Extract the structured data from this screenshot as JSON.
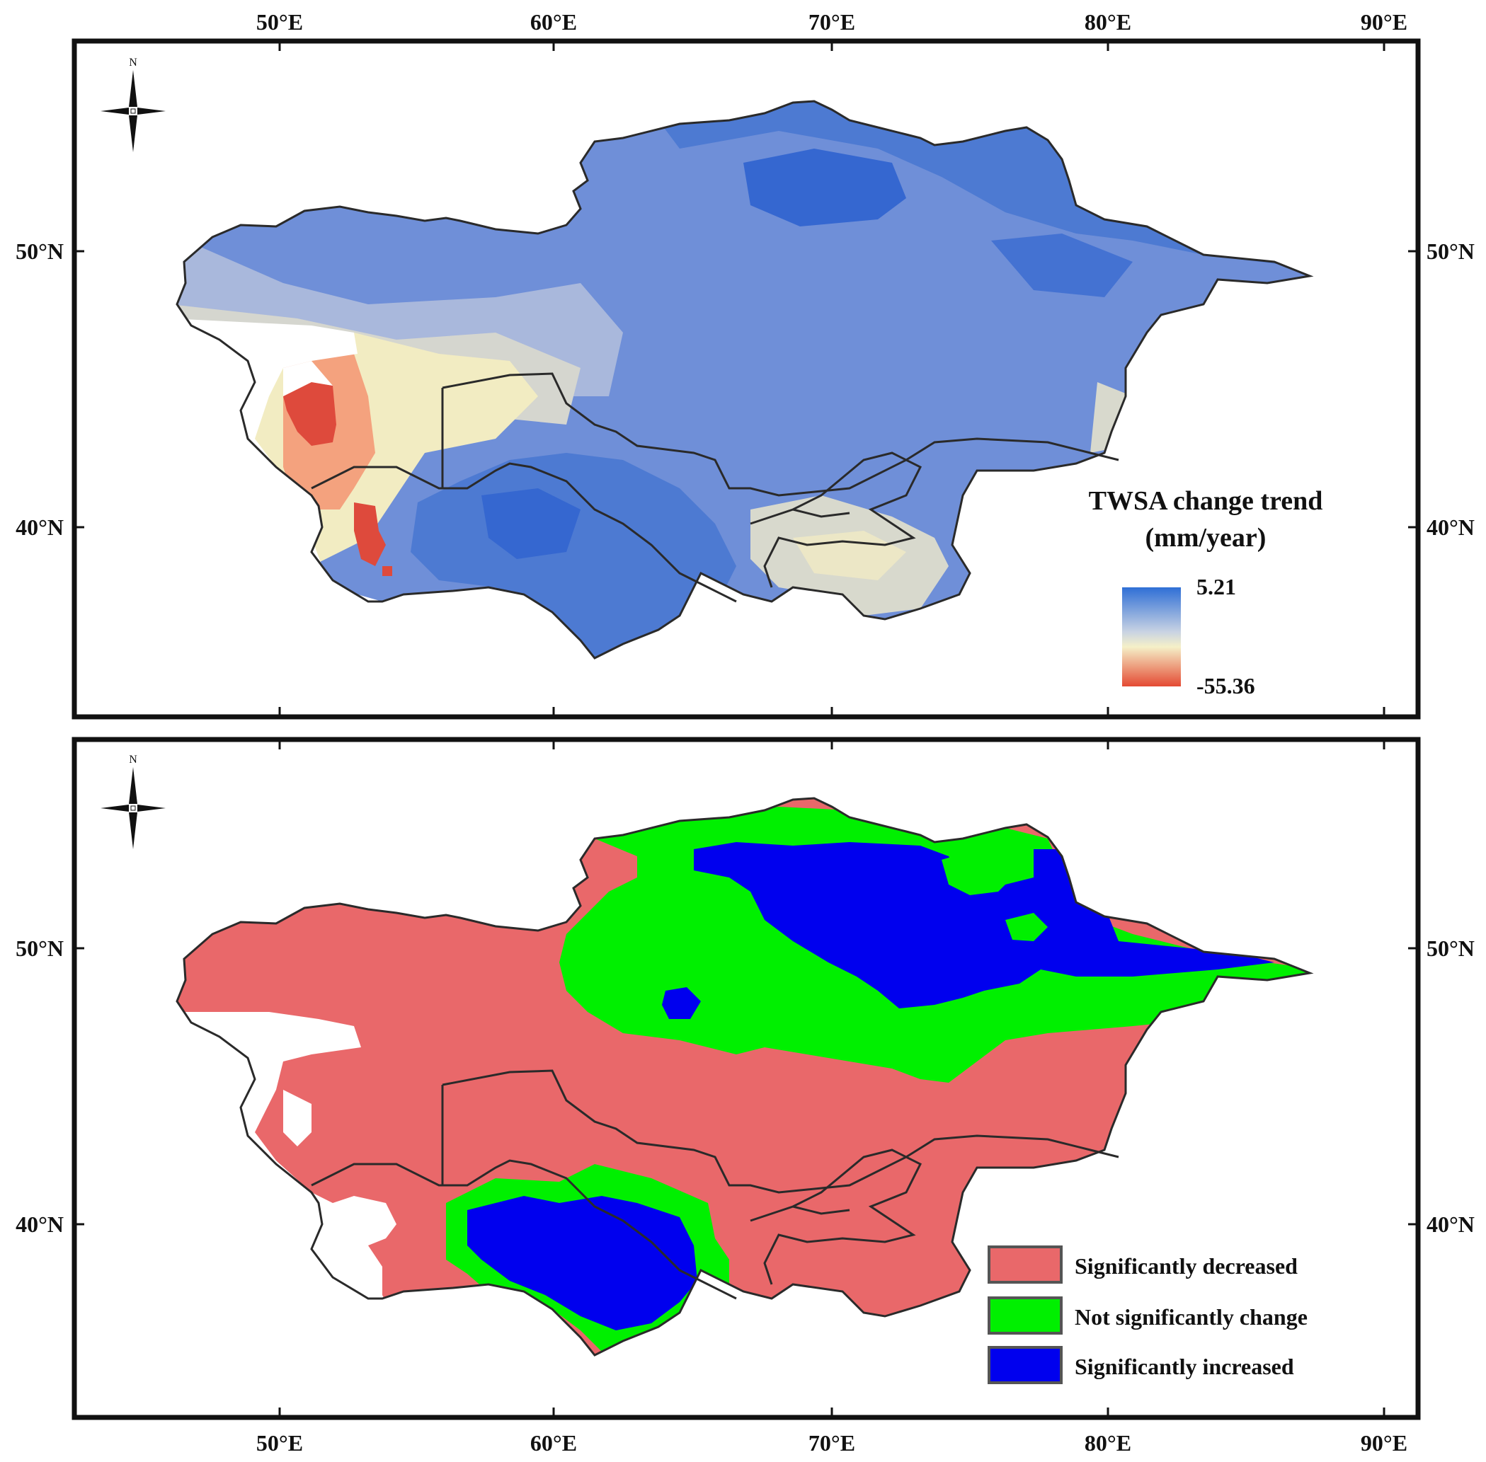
{
  "axes": {
    "lon_labels": [
      "50°E",
      "60°E",
      "70°E",
      "80°E",
      "90°E"
    ],
    "lat_labels": [
      "50°N",
      "40°N"
    ]
  },
  "top_map": {
    "legend": {
      "title_line1": "TWSA change trend",
      "title_line2": "(mm/year)",
      "max_label": "5.21",
      "min_label": "-55.36",
      "range": [
        -55.36,
        5.21
      ]
    },
    "north_label": "N",
    "colors": {
      "strong_blue": "#3f6fd0",
      "mid_blue": "#6f8fd8",
      "pale_blue": "#aab8dc",
      "cream": "#f2ecc2",
      "orange": "#f4a27e",
      "red": "#de4a3c"
    }
  },
  "bottom_map": {
    "north_label": "N",
    "legend": {
      "items": [
        {
          "label": "Significantly decreased",
          "color": "#e9686a"
        },
        {
          "label": "Not significantly change",
          "color": "#00f000"
        },
        {
          "label": "Significantly increased",
          "color": "#0000ee"
        }
      ]
    }
  }
}
